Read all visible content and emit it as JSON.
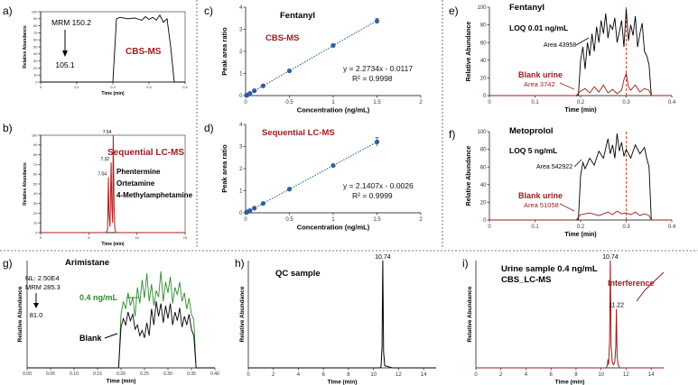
{
  "chart_data": [
    {
      "id": "a",
      "panel_label": "a)",
      "type": "line",
      "title": "",
      "xlabel": "Time (min)",
      "ylabel": "Relative Abundance",
      "xlim": [
        0,
        0.4
      ],
      "ylim": [
        0,
        100
      ],
      "xticks": [
        "0",
        "0.1",
        "0.2",
        "0.3",
        "0.4"
      ],
      "yticks": [
        "0",
        "10",
        "20",
        "30",
        "40",
        "50",
        "60",
        "70",
        "80",
        "90",
        "100"
      ],
      "annotations": {
        "mrm": "MRM 150.2",
        "ion": "105.1",
        "method": "CBS-MS"
      },
      "series": [
        {
          "name": "CBS-MS",
          "color": "#000000",
          "x": [
            0,
            0.19,
            0.2,
            0.21,
            0.22,
            0.24,
            0.26,
            0.28,
            0.29,
            0.3,
            0.31,
            0.32,
            0.33,
            0.34,
            0.35,
            0.36,
            0.37,
            0.4
          ],
          "y": [
            0,
            0,
            0,
            90,
            92,
            90,
            91,
            88,
            93,
            89,
            92,
            88,
            95,
            85,
            90,
            50,
            0,
            0
          ]
        }
      ]
    },
    {
      "id": "b",
      "panel_label": "b)",
      "type": "line",
      "title": "",
      "xlabel": "Time (min)",
      "ylabel": "Relative Abundance",
      "xlim": [
        0,
        15
      ],
      "ylim": [
        0,
        100
      ],
      "xticks": [
        "0",
        "5",
        "10",
        "15"
      ],
      "yticks": [
        "0",
        "10",
        "20",
        "30",
        "40",
        "50",
        "60",
        "70",
        "80",
        "90",
        "100"
      ],
      "peak_labels": [
        {
          "x": 7.04,
          "y": 57,
          "text": "7.04"
        },
        {
          "x": 7.32,
          "y": 72,
          "text": "7.32"
        },
        {
          "x": 7.54,
          "y": 100,
          "text": "7.54"
        }
      ],
      "annotations": {
        "method": "Sequential LC-MS",
        "compounds": [
          "Phentermine",
          "Ortetamine",
          "4-Methylamphetamine"
        ]
      },
      "series": [
        {
          "name": "Sequential LC-MS",
          "color": "#b01c1c",
          "x": [
            0,
            6.8,
            6.95,
            7.04,
            7.1,
            7.2,
            7.32,
            7.4,
            7.48,
            7.54,
            7.62,
            7.7,
            7.8,
            15
          ],
          "y": [
            0,
            0,
            3,
            57,
            20,
            6,
            72,
            25,
            10,
            100,
            30,
            5,
            0,
            0
          ]
        }
      ]
    },
    {
      "id": "c",
      "panel_label": "c)",
      "type": "scatter",
      "title": "Fentanyl",
      "xlabel": "Concentration (ng/mL)",
      "ylabel": "Peak area ratio",
      "xlim": [
        0,
        2
      ],
      "ylim": [
        0,
        4
      ],
      "xticks": [
        "0",
        "0.5",
        "1",
        "1.5",
        "2"
      ],
      "yticks": [
        "0",
        "1",
        "2",
        "3",
        "4"
      ],
      "annotations": {
        "method": "CBS-MS",
        "equation": "y = 2.2734x - 0.0117",
        "r2": "R² = 0.9998"
      },
      "series": [
        {
          "name": "Fentanyl CBS-MS",
          "color": "#2e5f9e",
          "x": [
            0.01,
            0.02,
            0.05,
            0.1,
            0.2,
            0.5,
            1,
            1.5
          ],
          "y": [
            0.01,
            0.03,
            0.1,
            0.22,
            0.44,
            1.12,
            2.27,
            3.37
          ],
          "error": [
            0,
            0,
            0,
            0,
            0.02,
            0.03,
            0.05,
            0.12
          ]
        }
      ],
      "fit": {
        "slope": 2.2734,
        "intercept": -0.0117,
        "x": [
          0,
          1.5
        ]
      }
    },
    {
      "id": "d",
      "panel_label": "d)",
      "type": "scatter",
      "title": "",
      "xlabel": "Concentration (ng/mL)",
      "ylabel": "Peak area ratio",
      "xlim": [
        0,
        2
      ],
      "ylim": [
        0,
        4
      ],
      "xticks": [
        "0",
        "0.5",
        "1",
        "1.5",
        "2"
      ],
      "yticks": [
        "0",
        "1",
        "2",
        "3",
        "4"
      ],
      "annotations": {
        "method": "Sequential LC-MS",
        "equation": "y = 2.1407x - 0.0026",
        "r2": "R² = 0.9999"
      },
      "series": [
        {
          "name": "Fentanyl Sequential LC-MS",
          "color": "#2e5f9e",
          "x": [
            0.01,
            0.02,
            0.05,
            0.1,
            0.2,
            0.5,
            1,
            1.5
          ],
          "y": [
            0.02,
            0.04,
            0.1,
            0.21,
            0.42,
            1.07,
            2.14,
            3.21
          ],
          "error": [
            0,
            0,
            0,
            0,
            0.02,
            0.03,
            0.06,
            0.2
          ]
        }
      ],
      "fit": {
        "slope": 2.1407,
        "intercept": -0.0026,
        "x": [
          0,
          1.5
        ]
      }
    },
    {
      "id": "e",
      "panel_label": "e)",
      "type": "line",
      "title": "Fentanyl",
      "xlabel": "Time (min)",
      "ylabel": "Relative Abundance",
      "xlim": [
        0,
        0.4
      ],
      "ylim": [
        0,
        100
      ],
      "xticks": [
        "0",
        "0.1",
        "0.2",
        "0.3",
        "0.4"
      ],
      "yticks": [
        "0",
        "20",
        "40",
        "60",
        "80",
        "100"
      ],
      "vline_x": 0.3,
      "annotations": {
        "loq": "LOQ 0.01 ng/mL",
        "area_sample": "Area 43958",
        "blank_label": "Blank urine",
        "area_blank": "Area 3742"
      },
      "series": [
        {
          "name": "Sample",
          "color": "#000000",
          "x": [
            0,
            0.195,
            0.2,
            0.205,
            0.21,
            0.215,
            0.22,
            0.225,
            0.23,
            0.235,
            0.24,
            0.245,
            0.25,
            0.255,
            0.26,
            0.265,
            0.27,
            0.275,
            0.28,
            0.285,
            0.29,
            0.295,
            0.3,
            0.305,
            0.31,
            0.315,
            0.32,
            0.325,
            0.33,
            0.335,
            0.34,
            0.345,
            0.35,
            0.355,
            0.4
          ],
          "y": [
            0,
            0,
            40,
            55,
            30,
            60,
            45,
            70,
            50,
            78,
            60,
            85,
            70,
            93,
            65,
            80,
            75,
            88,
            60,
            72,
            85,
            55,
            98,
            62,
            80,
            68,
            90,
            55,
            70,
            82,
            50,
            45,
            35,
            0,
            0
          ]
        },
        {
          "name": "Blank urine",
          "color": "#9b1b1b",
          "x": [
            0,
            0.19,
            0.2,
            0.21,
            0.22,
            0.23,
            0.24,
            0.25,
            0.26,
            0.27,
            0.28,
            0.29,
            0.295,
            0.3,
            0.305,
            0.31,
            0.32,
            0.33,
            0.34,
            0.35,
            0.355,
            0.4
          ],
          "y": [
            0,
            0,
            5,
            8,
            3,
            10,
            4,
            12,
            3,
            7,
            2,
            6,
            18,
            25,
            10,
            6,
            12,
            4,
            8,
            6,
            0,
            0
          ]
        }
      ]
    },
    {
      "id": "f",
      "panel_label": "f)",
      "type": "line",
      "title": "Metoprolol",
      "xlabel": "Time (min)",
      "ylabel": "Relative Abundance",
      "xlim": [
        0,
        0.4
      ],
      "ylim": [
        0,
        100
      ],
      "xticks": [
        "0",
        "0.1",
        "0.2",
        "0.3",
        "0.4"
      ],
      "yticks": [
        "0",
        "20",
        "40",
        "60",
        "80",
        "100"
      ],
      "vline_x": 0.3,
      "annotations": {
        "loq": "LOQ 5 ng/mL",
        "area_sample": "Area 542922",
        "blank_label": "Blank urine",
        "area_blank": "Area 51058"
      },
      "series": [
        {
          "name": "Sample",
          "color": "#000000",
          "x": [
            0,
            0.195,
            0.2,
            0.205,
            0.21,
            0.22,
            0.23,
            0.24,
            0.25,
            0.26,
            0.265,
            0.27,
            0.275,
            0.28,
            0.285,
            0.29,
            0.295,
            0.3,
            0.31,
            0.32,
            0.33,
            0.34,
            0.345,
            0.35,
            0.355,
            0.4
          ],
          "y": [
            0,
            0,
            50,
            65,
            58,
            70,
            62,
            78,
            70,
            92,
            75,
            85,
            70,
            98,
            78,
            88,
            72,
            80,
            70,
            85,
            75,
            82,
            70,
            60,
            0,
            0
          ]
        },
        {
          "name": "Blank urine",
          "color": "#9b1b1b",
          "x": [
            0,
            0.19,
            0.2,
            0.22,
            0.24,
            0.26,
            0.27,
            0.28,
            0.29,
            0.3,
            0.31,
            0.32,
            0.33,
            0.34,
            0.35,
            0.355,
            0.4
          ],
          "y": [
            0,
            0,
            6,
            8,
            5,
            9,
            6,
            10,
            7,
            8,
            6,
            9,
            5,
            7,
            5,
            0,
            0
          ]
        }
      ]
    },
    {
      "id": "g",
      "panel_label": "g)",
      "type": "line",
      "title": "Arimistane",
      "xlabel": "Time (min)",
      "ylabel": "Relative Abundance",
      "xlim": [
        0,
        0.4
      ],
      "ylim": [
        0,
        100
      ],
      "xticks": [
        "0.00",
        "0.05",
        "0.10",
        "0.15",
        "0.20",
        "0.25",
        "0.30",
        "0.35",
        "0.40"
      ],
      "yticks": [],
      "annotations": {
        "nl": "NL: 2.50E4",
        "mrm": "MRM 285.3",
        "ion": "81.0",
        "spiked": "0.4 ng/mL",
        "blank": "Blank"
      },
      "series": [
        {
          "name": "0.4 ng/mL",
          "color": "#2f8a2f",
          "x": [
            0,
            0.195,
            0.2,
            0.205,
            0.21,
            0.215,
            0.22,
            0.225,
            0.23,
            0.235,
            0.24,
            0.245,
            0.25,
            0.255,
            0.26,
            0.265,
            0.27,
            0.275,
            0.28,
            0.285,
            0.29,
            0.295,
            0.3,
            0.305,
            0.31,
            0.315,
            0.32,
            0.325,
            0.33,
            0.335,
            0.34,
            0.345,
            0.35,
            0.355,
            0.36,
            0.4
          ],
          "y": [
            0,
            0,
            50,
            62,
            55,
            70,
            58,
            66,
            48,
            75,
            60,
            82,
            65,
            88,
            62,
            78,
            58,
            72,
            66,
            90,
            62,
            80,
            70,
            85,
            60,
            75,
            68,
            80,
            62,
            70,
            55,
            65,
            50,
            45,
            0,
            0
          ]
        },
        {
          "name": "Blank",
          "color": "#000000",
          "x": [
            0,
            0.195,
            0.2,
            0.205,
            0.21,
            0.215,
            0.22,
            0.225,
            0.23,
            0.235,
            0.24,
            0.245,
            0.25,
            0.255,
            0.26,
            0.265,
            0.27,
            0.275,
            0.28,
            0.285,
            0.29,
            0.295,
            0.3,
            0.305,
            0.31,
            0.315,
            0.32,
            0.325,
            0.33,
            0.335,
            0.34,
            0.345,
            0.35,
            0.355,
            0.36,
            0.4
          ],
          "y": [
            0,
            0,
            38,
            46,
            40,
            52,
            44,
            50,
            36,
            40,
            30,
            35,
            28,
            42,
            30,
            55,
            40,
            62,
            48,
            60,
            42,
            58,
            46,
            60,
            40,
            52,
            44,
            56,
            38,
            48,
            40,
            50,
            36,
            30,
            0,
            0
          ]
        }
      ]
    },
    {
      "id": "h",
      "panel_label": "h)",
      "type": "line",
      "title": "QC sample",
      "xlabel": "Time (min)",
      "ylabel": "Relative Abundance",
      "xlim": [
        0,
        15
      ],
      "ylim": [
        0,
        100
      ],
      "xticks": [
        "0",
        "2",
        "4",
        "6",
        "8",
        "10",
        "12",
        "14"
      ],
      "yticks": [],
      "peak_labels": [
        {
          "x": 10.74,
          "y": 100,
          "text": "10.74"
        }
      ],
      "series": [
        {
          "name": "QC sample",
          "color": "#000000",
          "x": [
            0,
            10.5,
            10.6,
            10.68,
            10.74,
            10.8,
            10.9,
            11.2,
            11.5,
            15
          ],
          "y": [
            0,
            0,
            1,
            20,
            100,
            15,
            2,
            1,
            0,
            0
          ]
        }
      ]
    },
    {
      "id": "i",
      "panel_label": "i)",
      "type": "line",
      "title": "Urine sample 0.4 ng/mL",
      "xlabel": "Time (min)",
      "ylabel": "Relative Abundance",
      "xlim": [
        0,
        15
      ],
      "ylim": [
        0,
        100
      ],
      "xticks": [
        "0",
        "2",
        "4",
        "6",
        "8",
        "10",
        "12",
        "14"
      ],
      "yticks": [],
      "peak_labels": [
        {
          "x": 10.74,
          "y": 100,
          "text": "10.74"
        },
        {
          "x": 11.22,
          "y": 55,
          "text": "11.22"
        }
      ],
      "annotations": {
        "method": "CBS_LC-MS",
        "interference": "Interference"
      },
      "series": [
        {
          "name": "Urine sample",
          "color": "#9b1b1b",
          "x": [
            0,
            10.4,
            10.5,
            10.55,
            10.6,
            10.68,
            10.74,
            10.8,
            10.9,
            11.0,
            11.1,
            11.18,
            11.22,
            11.28,
            11.35,
            11.5,
            15
          ],
          "y": [
            0,
            0,
            2,
            8,
            3,
            25,
            100,
            20,
            5,
            3,
            6,
            20,
            55,
            12,
            3,
            0,
            0
          ]
        }
      ]
    }
  ]
}
